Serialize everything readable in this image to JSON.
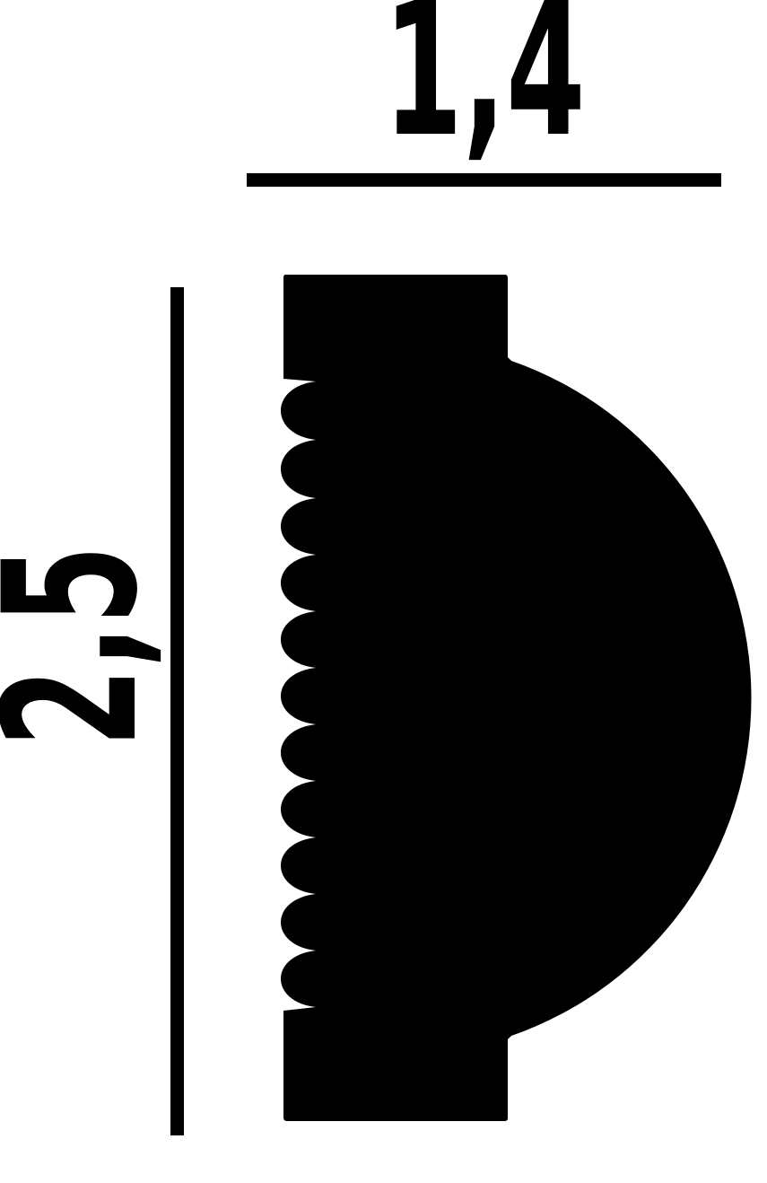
{
  "drawing": {
    "width_label": "1,4",
    "height_label": "2,5",
    "colors": {
      "ink": "#000000",
      "background": "#ffffff"
    }
  }
}
